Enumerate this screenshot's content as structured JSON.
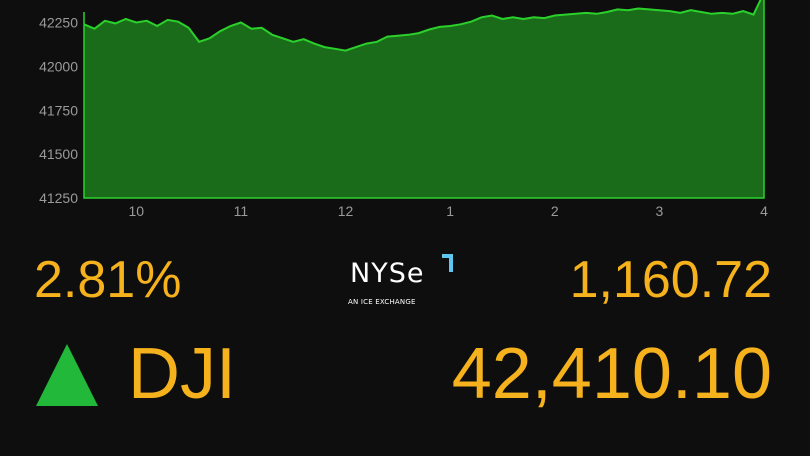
{
  "chart_data": {
    "type": "area",
    "title": "",
    "xlabel": "",
    "ylabel": "",
    "x_ticks": [
      {
        "label": "10",
        "hour": 10
      },
      {
        "label": "11",
        "hour": 11
      },
      {
        "label": "12",
        "hour": 12
      },
      {
        "label": "1",
        "hour": 13
      },
      {
        "label": "2",
        "hour": 14
      },
      {
        "label": "3",
        "hour": 15
      },
      {
        "label": "4",
        "hour": 16
      }
    ],
    "xlim": [
      9.5,
      16
    ],
    "y_ticks": [
      "42250",
      "42000",
      "41750",
      "41500",
      "41250"
    ],
    "ylim": [
      41250,
      42310
    ],
    "grid": false,
    "fill_color": "#1a6b1a",
    "line_color": "#2bd12b",
    "series": [
      {
        "x": [
          9.5,
          9.6,
          9.7,
          9.8,
          9.9,
          10.0,
          10.1,
          10.2,
          10.3,
          10.4,
          10.5,
          10.6,
          10.7,
          10.8,
          10.9,
          11.0,
          11.1,
          11.2,
          11.3,
          11.4,
          11.5,
          11.6,
          11.7,
          11.8,
          11.9,
          12.0,
          12.1,
          12.2,
          12.3,
          12.4,
          12.5,
          12.6,
          12.7,
          12.8,
          12.9,
          13.0,
          13.1,
          13.2,
          13.3,
          13.4,
          13.5,
          13.6,
          13.7,
          13.8,
          13.9,
          14.0,
          14.1,
          14.2,
          14.3,
          14.4,
          14.5,
          14.6,
          14.7,
          14.8,
          14.9,
          15.0,
          15.1,
          15.2,
          15.3,
          15.4,
          15.5,
          15.6,
          15.7,
          15.8,
          15.9,
          16.0
        ],
        "values": [
          42240,
          42215,
          42260,
          42245,
          42270,
          42250,
          42260,
          42230,
          42265,
          42255,
          42220,
          42140,
          42160,
          42200,
          42230,
          42250,
          42215,
          42220,
          42180,
          42160,
          42140,
          42155,
          42130,
          42110,
          42100,
          42090,
          42110,
          42130,
          42140,
          42170,
          42175,
          42180,
          42190,
          42210,
          42225,
          42230,
          42240,
          42255,
          42280,
          42290,
          42270,
          42280,
          42270,
          42280,
          42275,
          42290,
          42295,
          42300,
          42305,
          42300,
          42310,
          42325,
          42320,
          42330,
          42325,
          42320,
          42315,
          42305,
          42320,
          42310,
          42300,
          42305,
          42300,
          42315,
          42295,
          42420
        ]
      }
    ]
  },
  "quote": {
    "percent_change": "2.81%",
    "point_change": "1,160.72",
    "ticker": "DJI",
    "value": "42,410.10",
    "direction": "up",
    "accent_color": "#f5b21c",
    "up_color": "#22b83a"
  },
  "logo": {
    "name": "NYSE",
    "wordmark": "NYSe",
    "tagline": "AN ICE EXCHANGE",
    "corner_color": "#5ec6f0"
  }
}
